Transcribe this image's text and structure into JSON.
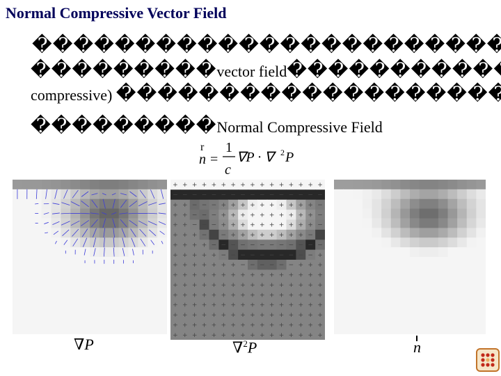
{
  "slide": {
    "title": "Normal Compressive Vector Field",
    "line1_glyphs": "�������������������������",
    "line2_glyphs_a": "���������",
    "line2_text": "vector field",
    "line2_glyphs_b": "�������������",
    "line3_text": "compressive)",
    "line3_glyphs": "�������������������",
    "line4_glyphs": "���������",
    "line4_text": "Normal Compressive Field"
  },
  "formula": {
    "lhs_arrow": "r",
    "lhs": "n",
    "equals": "=",
    "numerator": "1",
    "denominator": "c",
    "expression": "∇P · ∇",
    "sup": "2",
    "tail": "P"
  },
  "captions": {
    "gradient": "∇P",
    "laplacian_nabla": "∇",
    "laplacian_sup": "2",
    "laplacian_p": "P",
    "normal": "n"
  },
  "icons": {
    "vector_glyph": "vector-arrows",
    "nav": "grid-dots-icon"
  },
  "colors": {
    "title": "#00005a",
    "vector": "#3b3bd8"
  }
}
